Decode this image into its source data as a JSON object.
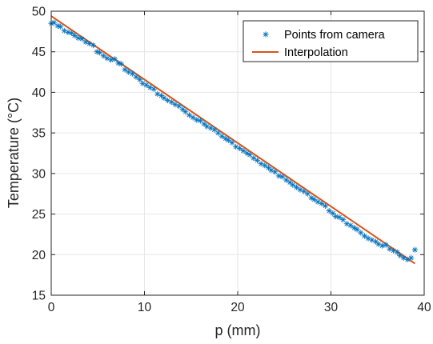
{
  "chart_data": {
    "type": "scatter",
    "title": "",
    "xlabel": "p (mm)",
    "ylabel": "Temperature (°C)",
    "xlim": [
      0,
      40
    ],
    "ylim": [
      15,
      50
    ],
    "xticks": [
      0,
      10,
      20,
      30,
      40
    ],
    "yticks": [
      15,
      20,
      25,
      30,
      35,
      40,
      45,
      50
    ],
    "xtick_labels": [
      "0",
      "10",
      "20",
      "30",
      "40"
    ],
    "ytick_labels": [
      "15",
      "20",
      "25",
      "30",
      "35",
      "40",
      "45",
      "50"
    ],
    "grid": true,
    "legend_position": "top-right",
    "series": [
      {
        "name": "Points from camera",
        "kind": "scatter",
        "marker": "asterisk",
        "color": "#0072BD",
        "x": [
          0.0,
          0.3,
          0.7,
          1.0,
          1.4,
          1.8,
          2.2,
          2.5,
          2.9,
          3.3,
          3.7,
          4.1,
          4.5,
          4.9,
          5.2,
          5.6,
          6.0,
          6.4,
          6.8,
          7.2,
          7.5,
          7.9,
          8.3,
          8.7,
          9.1,
          9.5,
          9.8,
          10.2,
          10.6,
          11.0,
          11.4,
          11.8,
          12.1,
          12.5,
          12.9,
          13.3,
          13.7,
          14.1,
          14.4,
          14.8,
          15.2,
          15.6,
          16.0,
          16.4,
          16.7,
          17.1,
          17.5,
          17.9,
          18.3,
          18.7,
          19.0,
          19.4,
          19.8,
          20.2,
          20.6,
          21.0,
          21.3,
          21.7,
          22.1,
          22.5,
          22.9,
          23.3,
          23.6,
          24.0,
          24.4,
          24.8,
          25.2,
          25.6,
          25.9,
          26.3,
          26.7,
          27.1,
          27.5,
          27.9,
          28.2,
          28.6,
          29.0,
          29.4,
          29.8,
          30.2,
          30.5,
          30.9,
          31.3,
          31.7,
          32.1,
          32.5,
          32.8,
          33.2,
          33.6,
          34.0,
          34.4,
          34.8,
          35.1,
          35.5,
          35.9,
          36.3,
          36.7,
          37.1,
          37.4,
          37.8,
          38.2,
          38.6,
          39.0
        ],
        "y": [
          48.5,
          48.6,
          48.2,
          48.1,
          47.6,
          47.4,
          47.3,
          47.0,
          46.7,
          46.6,
          46.2,
          46.0,
          45.8,
          45.0,
          44.9,
          44.5,
          44.2,
          44.0,
          44.1,
          43.6,
          43.5,
          42.8,
          42.5,
          42.3,
          41.9,
          41.6,
          41.1,
          40.9,
          40.6,
          40.4,
          39.8,
          39.6,
          39.3,
          39.0,
          38.8,
          38.5,
          38.3,
          37.9,
          37.6,
          37.2,
          36.9,
          36.6,
          36.5,
          36.1,
          35.8,
          35.6,
          35.4,
          35.0,
          34.6,
          34.3,
          34.1,
          33.8,
          33.3,
          33.1,
          32.8,
          32.5,
          32.3,
          31.9,
          31.6,
          31.2,
          31.0,
          30.7,
          30.4,
          30.2,
          29.7,
          29.6,
          29.2,
          28.9,
          28.6,
          28.3,
          28.0,
          27.8,
          27.5,
          27.0,
          26.8,
          26.5,
          26.3,
          26.0,
          25.4,
          25.1,
          24.7,
          24.6,
          24.3,
          23.8,
          23.6,
          23.3,
          23.1,
          22.7,
          22.3,
          22.0,
          21.8,
          21.6,
          21.3,
          21.1,
          21.2,
          20.7,
          20.5,
          20.3,
          19.9,
          19.6,
          19.4,
          19.6,
          20.6
        ]
      },
      {
        "name": "Interpolation",
        "kind": "line",
        "color": "#D95319",
        "x": [
          0,
          39
        ],
        "y": [
          49.4,
          18.9
        ]
      }
    ]
  }
}
